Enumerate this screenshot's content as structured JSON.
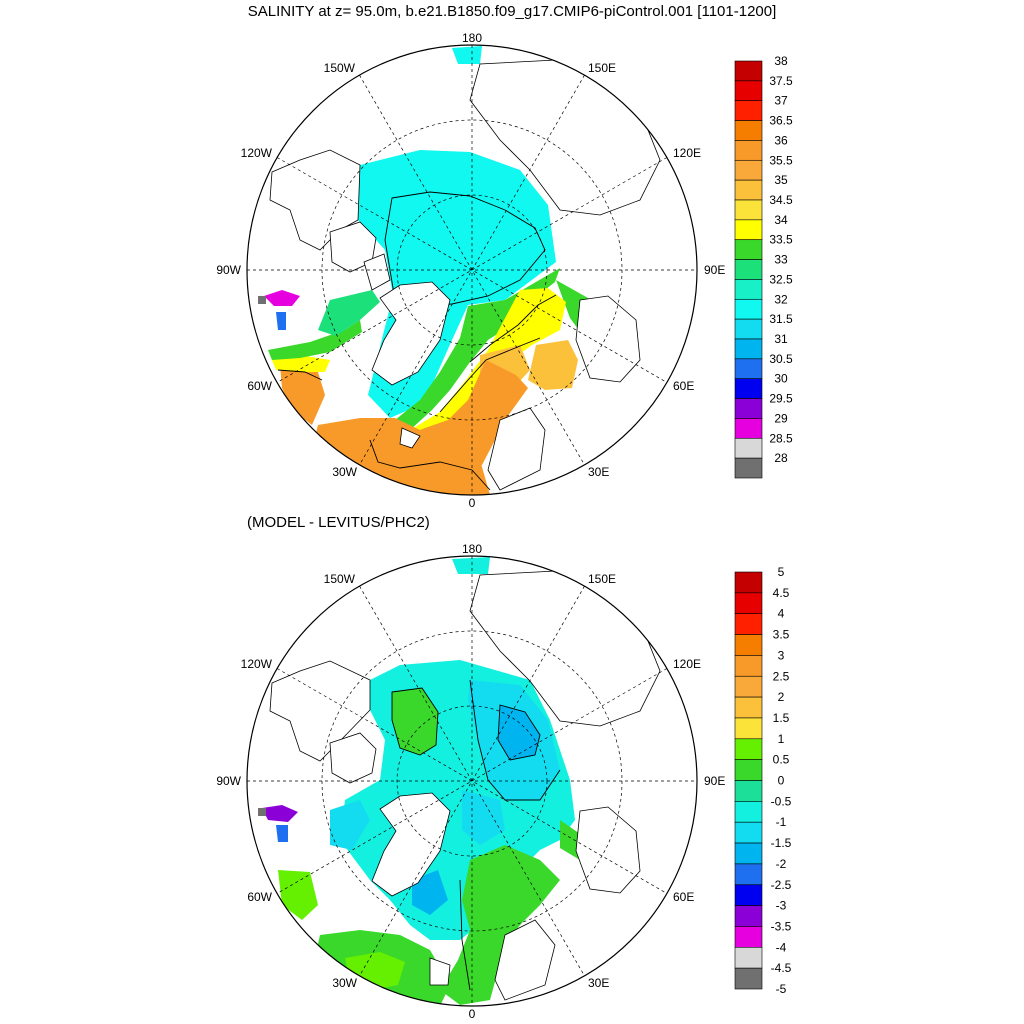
{
  "titles": {
    "main": "SALINITY at z=  95.0m, b.e21.B1850.f09_g17.CMIP6-piControl.001 [1101-1200]",
    "sub": "(MODEL - LEVITUS/PHC2)"
  },
  "map_labels": {
    "top": "180",
    "bottom": "0",
    "left": "90W",
    "right": "90E",
    "upper_left": "150W",
    "upper_right": "150E",
    "mid_upper_left": "120W",
    "mid_upper_right": "120E",
    "mid_lower_left": "60W",
    "mid_lower_right": "60E",
    "lower_left": "30W",
    "lower_right": "30E"
  },
  "colorbars": {
    "salinity": {
      "labels": [
        "38",
        "37.5",
        "37",
        "36.5",
        "36",
        "35.5",
        "35",
        "34.5",
        "34",
        "33.5",
        "33",
        "32.5",
        "32",
        "31.5",
        "31",
        "30.5",
        "30",
        "29.5",
        "29",
        "28.5",
        "28"
      ],
      "colors": [
        "#c40000",
        "#e60000",
        "#ff2000",
        "#f57d00",
        "#f89a2a",
        "#f9a83a",
        "#fcc13a",
        "#fce33a",
        "#ffff00",
        "#3ad82a",
        "#1ce07a",
        "#18f0c8",
        "#10f8f0",
        "#14dcf0",
        "#00b4f0",
        "#1e70f0",
        "#0000f0",
        "#8c00d8",
        "#e600e0",
        "#d8d8d8",
        "#707070"
      ]
    },
    "difference": {
      "labels": [
        "5",
        "4.5",
        "4",
        "3.5",
        "3",
        "2.5",
        "2",
        "1.5",
        "1",
        "0.5",
        "0",
        "-0.5",
        "-1",
        "-1.5",
        "-2",
        "-2.5",
        "-3",
        "-3.5",
        "-4",
        "-4.5",
        "-5"
      ],
      "colors": [
        "#c40000",
        "#e60000",
        "#ff2000",
        "#f57d00",
        "#f89a2a",
        "#f9a83a",
        "#fcc13a",
        "#fce33a",
        "#64f000",
        "#3ad82a",
        "#1ce09a",
        "#14f0e0",
        "#14dcf0",
        "#00b4f0",
        "#1e70f0",
        "#0000f0",
        "#8c00d8",
        "#e600e0",
        "#d8d8d8",
        "#707070"
      ]
    }
  }
}
